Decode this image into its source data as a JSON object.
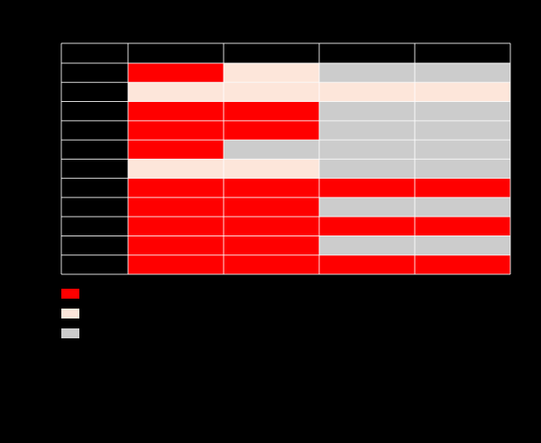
{
  "chart_data": {
    "type": "heatmap",
    "title": "",
    "xlabel": "",
    "ylabel": "",
    "columns": 4,
    "rows": 11,
    "categories": {
      "0": "red",
      "1": "cream",
      "2": "gray"
    },
    "colors": {
      "0": "#ff0000",
      "1": "#fde6da",
      "2": "#cccccc"
    },
    "values": [
      [
        0,
        1,
        2,
        2
      ],
      [
        1,
        1,
        1,
        1
      ],
      [
        0,
        0,
        2,
        2
      ],
      [
        0,
        0,
        2,
        2
      ],
      [
        0,
        2,
        2,
        2
      ],
      [
        1,
        1,
        2,
        2
      ],
      [
        0,
        0,
        0,
        0
      ],
      [
        0,
        0,
        2,
        2
      ],
      [
        0,
        0,
        0,
        0
      ],
      [
        0,
        0,
        2,
        2
      ],
      [
        0,
        0,
        0,
        0
      ]
    ],
    "legend": {
      "position": "bottom-left",
      "entries": [
        {
          "key": "0",
          "label": ""
        },
        {
          "key": "1",
          "label": ""
        },
        {
          "key": "2",
          "label": ""
        }
      ]
    },
    "grid": true
  }
}
